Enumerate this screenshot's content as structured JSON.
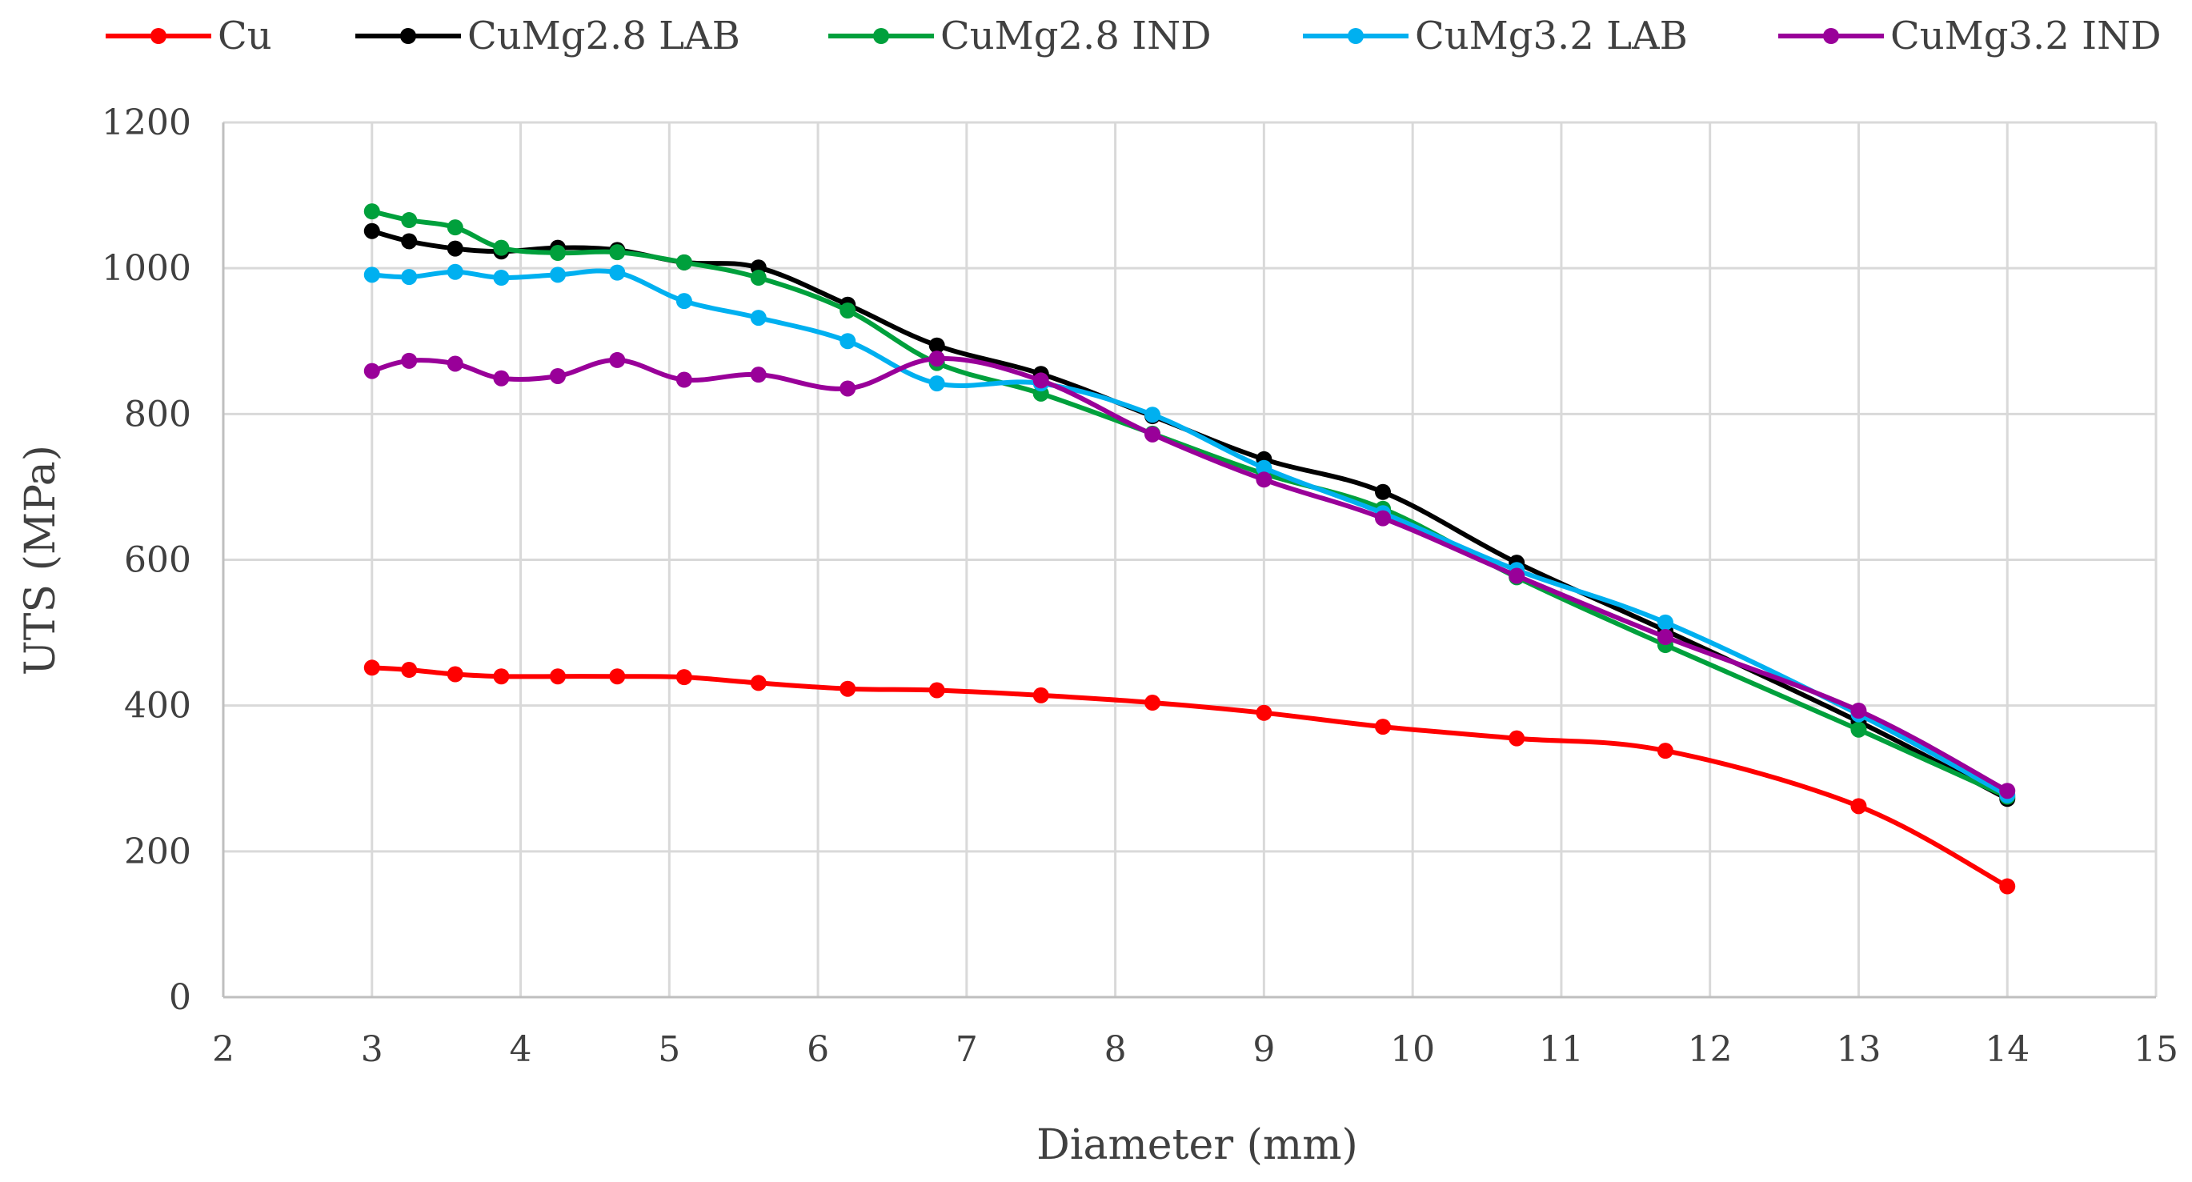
{
  "chart_data": {
    "type": "line",
    "title": "",
    "xlabel": "Diameter (mm)",
    "ylabel": "UTS (MPa)",
    "xlim": [
      2,
      15
    ],
    "ylim": [
      0,
      1200
    ],
    "xticks": [
      2,
      3,
      4,
      5,
      6,
      7,
      8,
      9,
      10,
      11,
      12,
      13,
      14,
      15
    ],
    "yticks": [
      0,
      200,
      400,
      600,
      800,
      1000,
      1200
    ],
    "grid": true,
    "legend_position": "top",
    "series": [
      {
        "name": "Cu",
        "color": "#ff0000",
        "x": [
          3,
          3.25,
          3.56,
          3.87,
          4.25,
          4.65,
          5.1,
          5.6,
          6.2,
          6.8,
          7.5,
          8.25,
          9,
          9.8,
          10.7,
          11.7,
          13,
          14
        ],
        "y": [
          452,
          449,
          443,
          440,
          440,
          440,
          439,
          431,
          423,
          421,
          414,
          404,
          390,
          371,
          355,
          338,
          262,
          152
        ]
      },
      {
        "name": "CuMg2.8 LAB",
        "color": "#000000",
        "x": [
          3,
          3.25,
          3.56,
          3.87,
          4.25,
          4.65,
          5.1,
          5.6,
          6.2,
          6.8,
          7.5,
          8.25,
          9,
          9.8,
          10.7,
          11.7,
          13,
          14
        ],
        "y": [
          1051,
          1037,
          1027,
          1023,
          1028,
          1025,
          1008,
          1001,
          950,
          894,
          855,
          797,
          738,
          693,
          596,
          503,
          378,
          272
        ]
      },
      {
        "name": "CuMg2.8 IND",
        "color": "#00a03c",
        "x": [
          3,
          3.25,
          3.56,
          3.87,
          4.25,
          4.65,
          5.1,
          5.6,
          6.2,
          6.8,
          7.5,
          8.25,
          9,
          9.8,
          10.7,
          11.7,
          13,
          14
        ],
        "y": [
          1078,
          1066,
          1056,
          1028,
          1021,
          1022,
          1008,
          987,
          942,
          870,
          828,
          773,
          718,
          670,
          576,
          483,
          367,
          275
        ]
      },
      {
        "name": "CuMg3.2 LAB",
        "color": "#00b0f0",
        "x": [
          3,
          3.25,
          3.56,
          3.87,
          4.25,
          4.65,
          5.1,
          5.6,
          6.2,
          6.8,
          7.5,
          8.25,
          9,
          9.8,
          10.7,
          11.7,
          13,
          14
        ],
        "y": [
          991,
          988,
          995,
          987,
          991,
          994,
          955,
          932,
          900,
          842,
          842,
          799,
          726,
          664,
          586,
          514,
          388,
          277
        ]
      },
      {
        "name": "CuMg3.2 IND",
        "color": "#990099",
        "x": [
          3,
          3.25,
          3.56,
          3.87,
          4.25,
          4.65,
          5.1,
          5.6,
          6.2,
          6.8,
          7.5,
          8.25,
          9,
          9.8,
          10.7,
          11.7,
          13,
          14
        ],
        "y": [
          859,
          873,
          869,
          849,
          852,
          874,
          847,
          854,
          835,
          876,
          846,
          772,
          710,
          657,
          578,
          494,
          393,
          283
        ]
      }
    ]
  }
}
